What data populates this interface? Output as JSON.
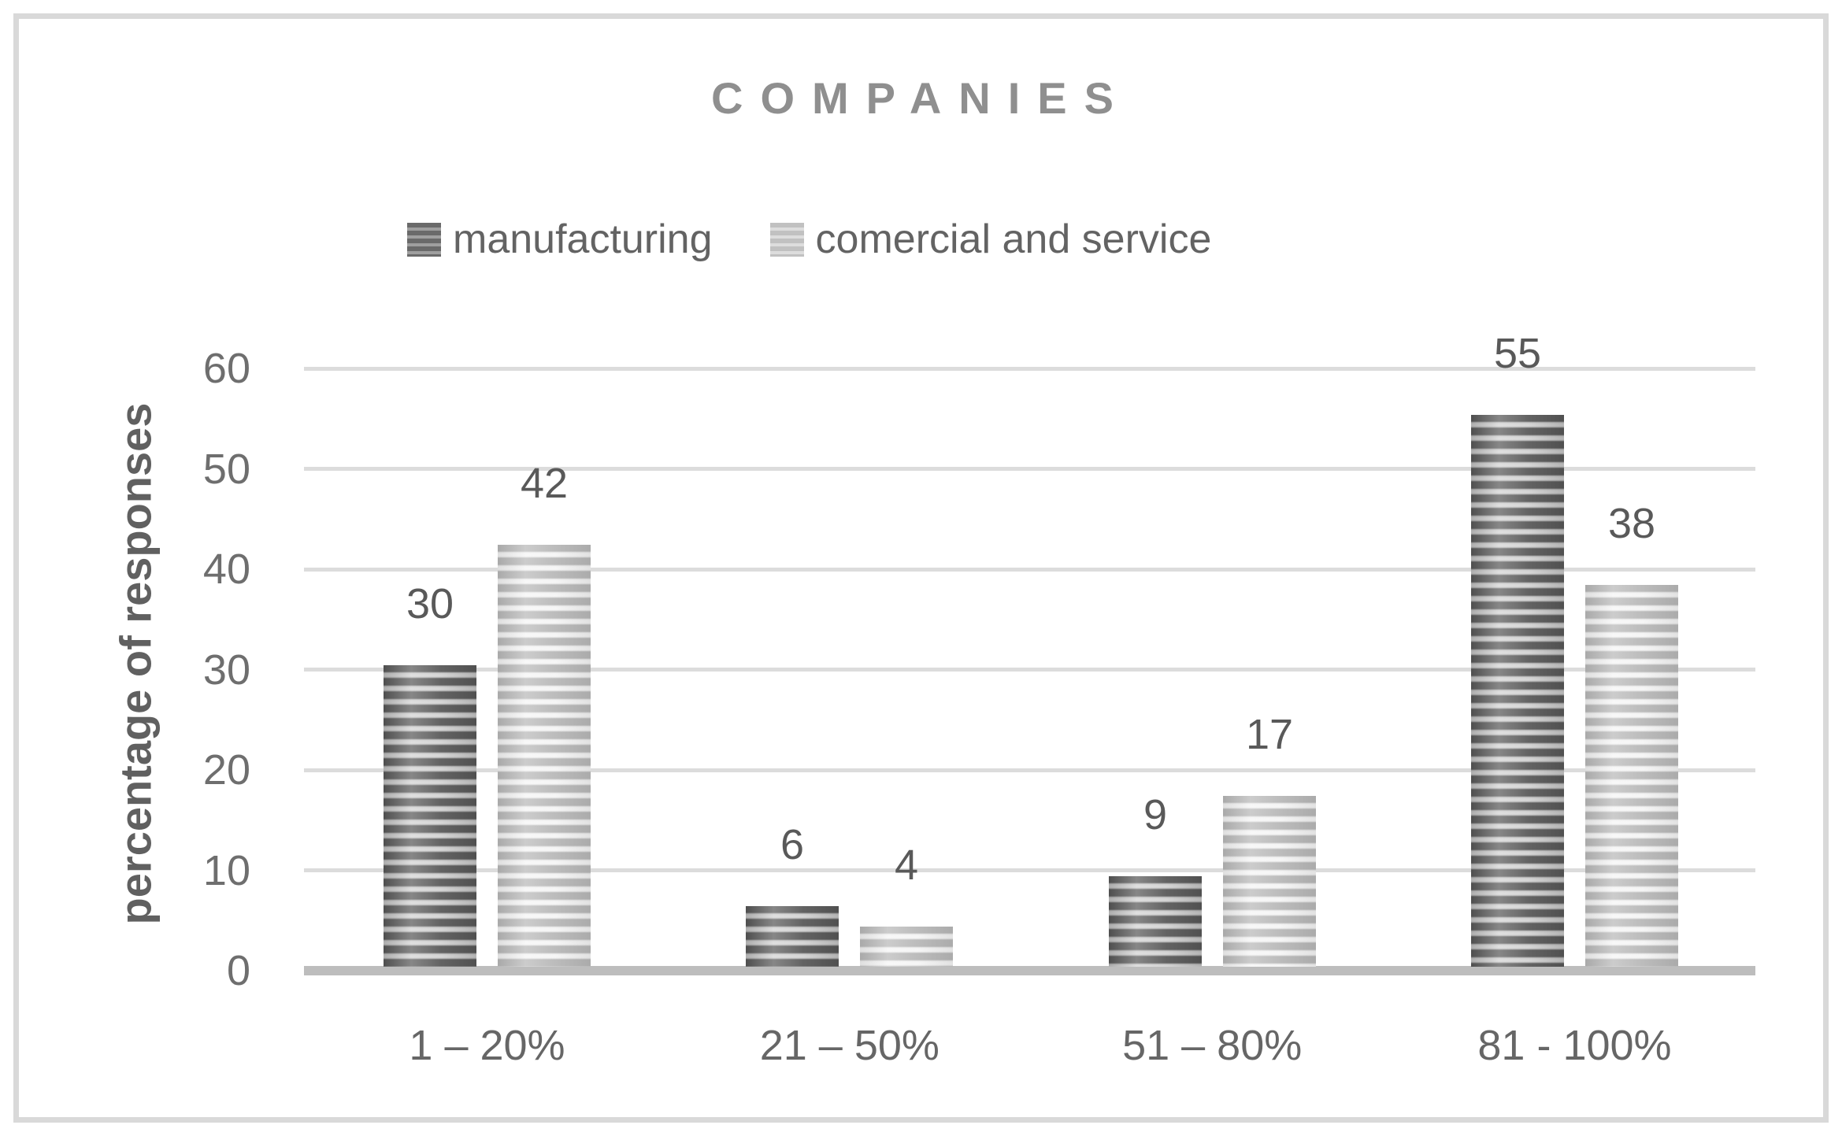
{
  "chart_data": {
    "type": "bar",
    "title": "COMPANIES",
    "categories": [
      "1 – 20%",
      "21 – 50%",
      "51 – 80%",
      "81 - 100%"
    ],
    "series": [
      {
        "name": "manufacturing",
        "values": [
          30,
          6,
          9,
          55
        ]
      },
      {
        "name": "comercial and service",
        "values": [
          42,
          4,
          17,
          38
        ]
      }
    ],
    "xlabel": "",
    "ylabel": "percentage of responses",
    "ylim": [
      0,
      60
    ],
    "yticks": [
      0,
      10,
      20,
      30,
      40,
      50,
      60
    ],
    "grid": true,
    "data_labels": true,
    "legend_position": "top",
    "colors": {
      "manufacturing_stripe_dark": "#595959",
      "manufacturing_stripe_light": "#cfcfcf",
      "service_stripe_dark": "#b6b6b6",
      "service_stripe_light": "#f2f2f2",
      "gridline": "#dcdcdc",
      "axis_line": "#bdbdbd",
      "frame_border": "#d9d9d9",
      "title_text": "#8f8f8f",
      "label_text": "#595959",
      "tick_text": "#6e6e6e"
    }
  }
}
